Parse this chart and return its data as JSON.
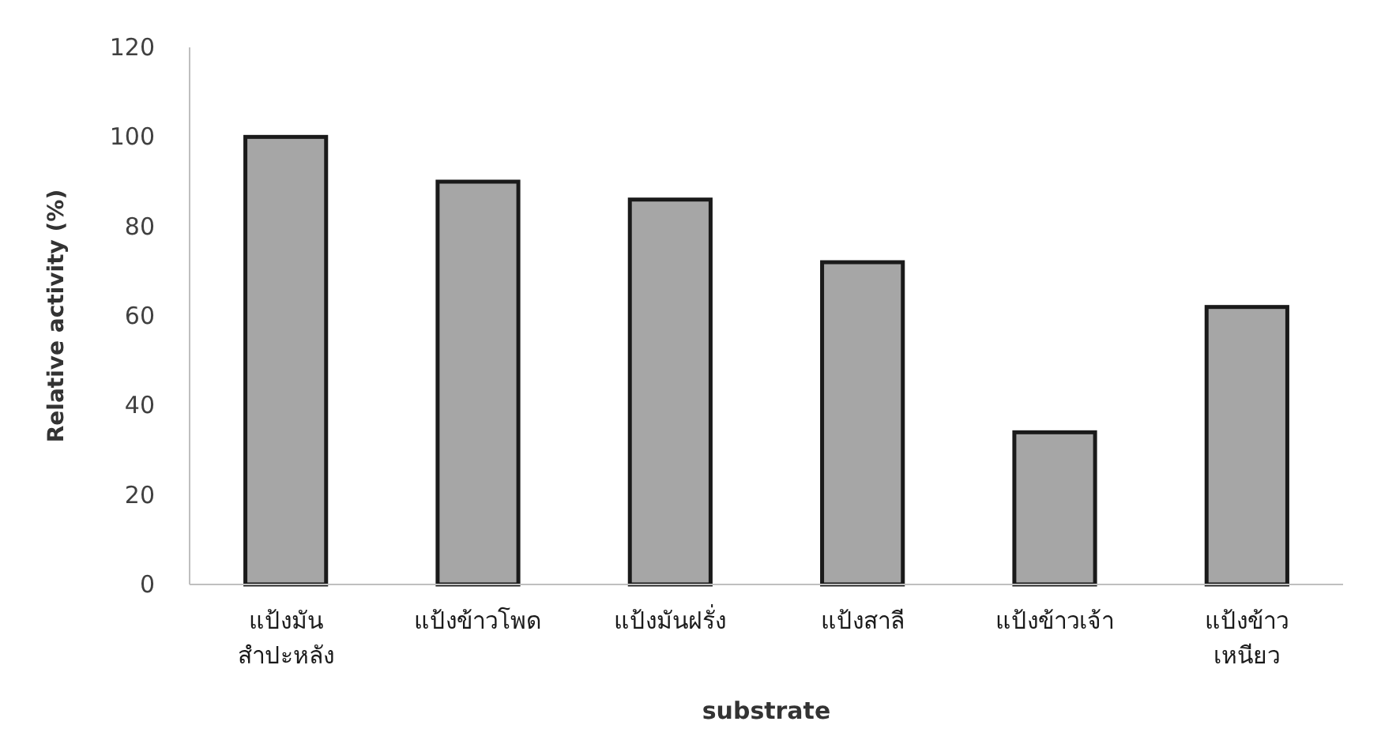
{
  "chart_data": {
    "type": "bar",
    "xlabel": "substrate",
    "ylabel": "Relative activity (%)",
    "categories": [
      "แป้งมัน\nสำปะหลัง",
      "แป้งข้าวโพด",
      "แป้งมันฝรั่ง",
      "แป้งสาลี",
      "แป้งข้าวเจ้า",
      "แป้งข้าว\nเหนียว"
    ],
    "values": [
      100,
      90,
      86,
      72,
      34,
      62
    ],
    "color": "#a6a6a6",
    "ylim": [
      0,
      120
    ],
    "yticks": [
      0,
      20,
      40,
      60,
      80,
      100,
      120
    ],
    "grid": false
  }
}
